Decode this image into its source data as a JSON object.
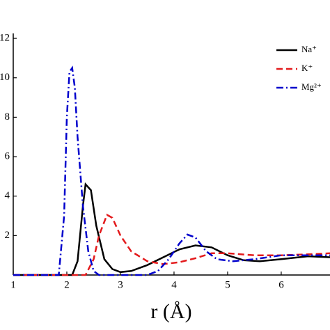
{
  "chart_data": {
    "type": "line",
    "xlabel": "r (Å)",
    "xlim": [
      1,
      6.91
    ],
    "xticks": [
      1,
      2,
      3,
      4,
      5,
      6
    ],
    "ylim": [
      0,
      12.25
    ],
    "yticks": [
      2,
      4,
      6,
      8,
      10,
      12
    ],
    "legend": "upper right",
    "series": [
      {
        "name": "Na⁺",
        "color": "#000000",
        "dash": "solid",
        "x": [
          1,
          2.1,
          2.2,
          2.3,
          2.35,
          2.45,
          2.55,
          2.7,
          2.85,
          3.0,
          3.2,
          3.5,
          3.8,
          4.1,
          4.4,
          4.7,
          5.0,
          5.3,
          5.6,
          6.0,
          6.5,
          6.91
        ],
        "values": [
          0,
          0,
          0.7,
          3.5,
          4.6,
          4.3,
          2.5,
          0.8,
          0.3,
          0.15,
          0.2,
          0.5,
          0.9,
          1.3,
          1.5,
          1.4,
          1.0,
          0.75,
          0.7,
          0.8,
          0.95,
          0.9
        ]
      },
      {
        "name": "K⁺",
        "color": "#e31a1c",
        "dash": "dashed",
        "x": [
          1,
          2.35,
          2.5,
          2.6,
          2.75,
          2.85,
          3.0,
          3.2,
          3.5,
          3.8,
          4.1,
          4.4,
          4.7,
          5.0,
          5.5,
          6.0,
          6.5,
          6.91
        ],
        "values": [
          0,
          0,
          0.8,
          2.0,
          3.05,
          2.9,
          2.0,
          1.2,
          0.7,
          0.55,
          0.65,
          0.85,
          1.1,
          1.1,
          1.0,
          1.0,
          1.05,
          1.1
        ]
      },
      {
        "name": "Mg²⁺",
        "color": "#0000cc",
        "dash": "dashdot",
        "x": [
          1,
          1.85,
          1.95,
          2.0,
          2.05,
          2.1,
          2.15,
          2.2,
          2.3,
          2.4,
          2.5,
          2.6,
          3.5,
          3.7,
          3.9,
          4.1,
          4.25,
          4.4,
          4.6,
          4.8,
          5.1,
          5.5,
          6.0,
          6.5,
          6.91
        ],
        "values": [
          0,
          0,
          3,
          8,
          10.3,
          10.5,
          9.5,
          7,
          3.5,
          1.2,
          0.2,
          0,
          0,
          0.2,
          0.8,
          1.6,
          2.05,
          1.9,
          1.2,
          0.8,
          0.7,
          0.8,
          1.0,
          1.0,
          1.0
        ]
      }
    ]
  }
}
